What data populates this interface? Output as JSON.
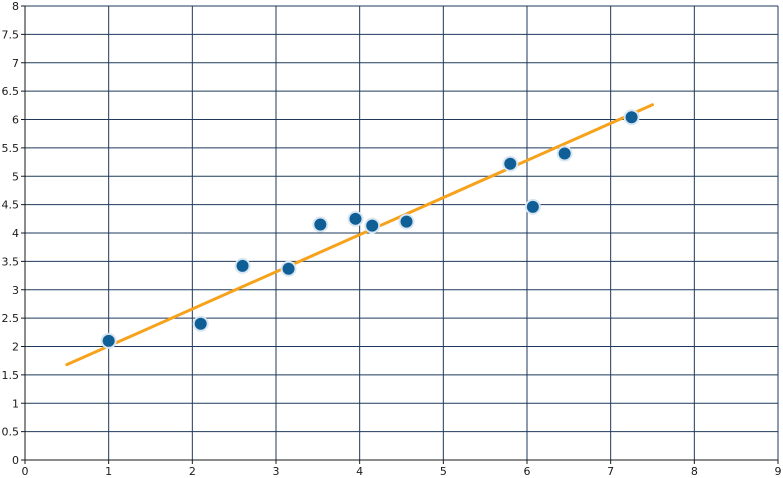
{
  "chart_data": {
    "type": "scatter",
    "title": "",
    "xlabel": "",
    "ylabel": "",
    "xlim": [
      0,
      9
    ],
    "ylim": [
      0,
      8
    ],
    "x_ticks": [
      "0",
      "1",
      "2",
      "3",
      "4",
      "5",
      "6",
      "7",
      "8",
      "9"
    ],
    "y_ticks": [
      "0",
      "0.5",
      "1",
      "1.5",
      "2",
      "2.5",
      "3",
      "3.5",
      "4",
      "4.5",
      "5",
      "5.5",
      "6",
      "6.5",
      "7",
      "7.5",
      "8"
    ],
    "grid": true,
    "series": [
      {
        "points": [
          {
            "x": 1.0,
            "y": 2.1
          },
          {
            "x": 2.1,
            "y": 2.4
          },
          {
            "x": 2.6,
            "y": 3.42
          },
          {
            "x": 3.15,
            "y": 3.37
          },
          {
            "x": 3.53,
            "y": 4.15
          },
          {
            "x": 3.95,
            "y": 4.25
          },
          {
            "x": 4.15,
            "y": 4.13
          },
          {
            "x": 4.56,
            "y": 4.2
          },
          {
            "x": 5.8,
            "y": 5.22
          },
          {
            "x": 6.07,
            "y": 4.46
          },
          {
            "x": 6.45,
            "y": 5.4
          },
          {
            "x": 7.25,
            "y": 6.04
          }
        ]
      }
    ],
    "trendline": {
      "x1": 0.5,
      "y1": 1.68,
      "x2": 7.5,
      "y2": 6.26
    },
    "colors": {
      "point": "#0f5f96",
      "trendline": "#f7a21b",
      "grid": "#1f3a5c",
      "background": "#ffffff"
    }
  }
}
